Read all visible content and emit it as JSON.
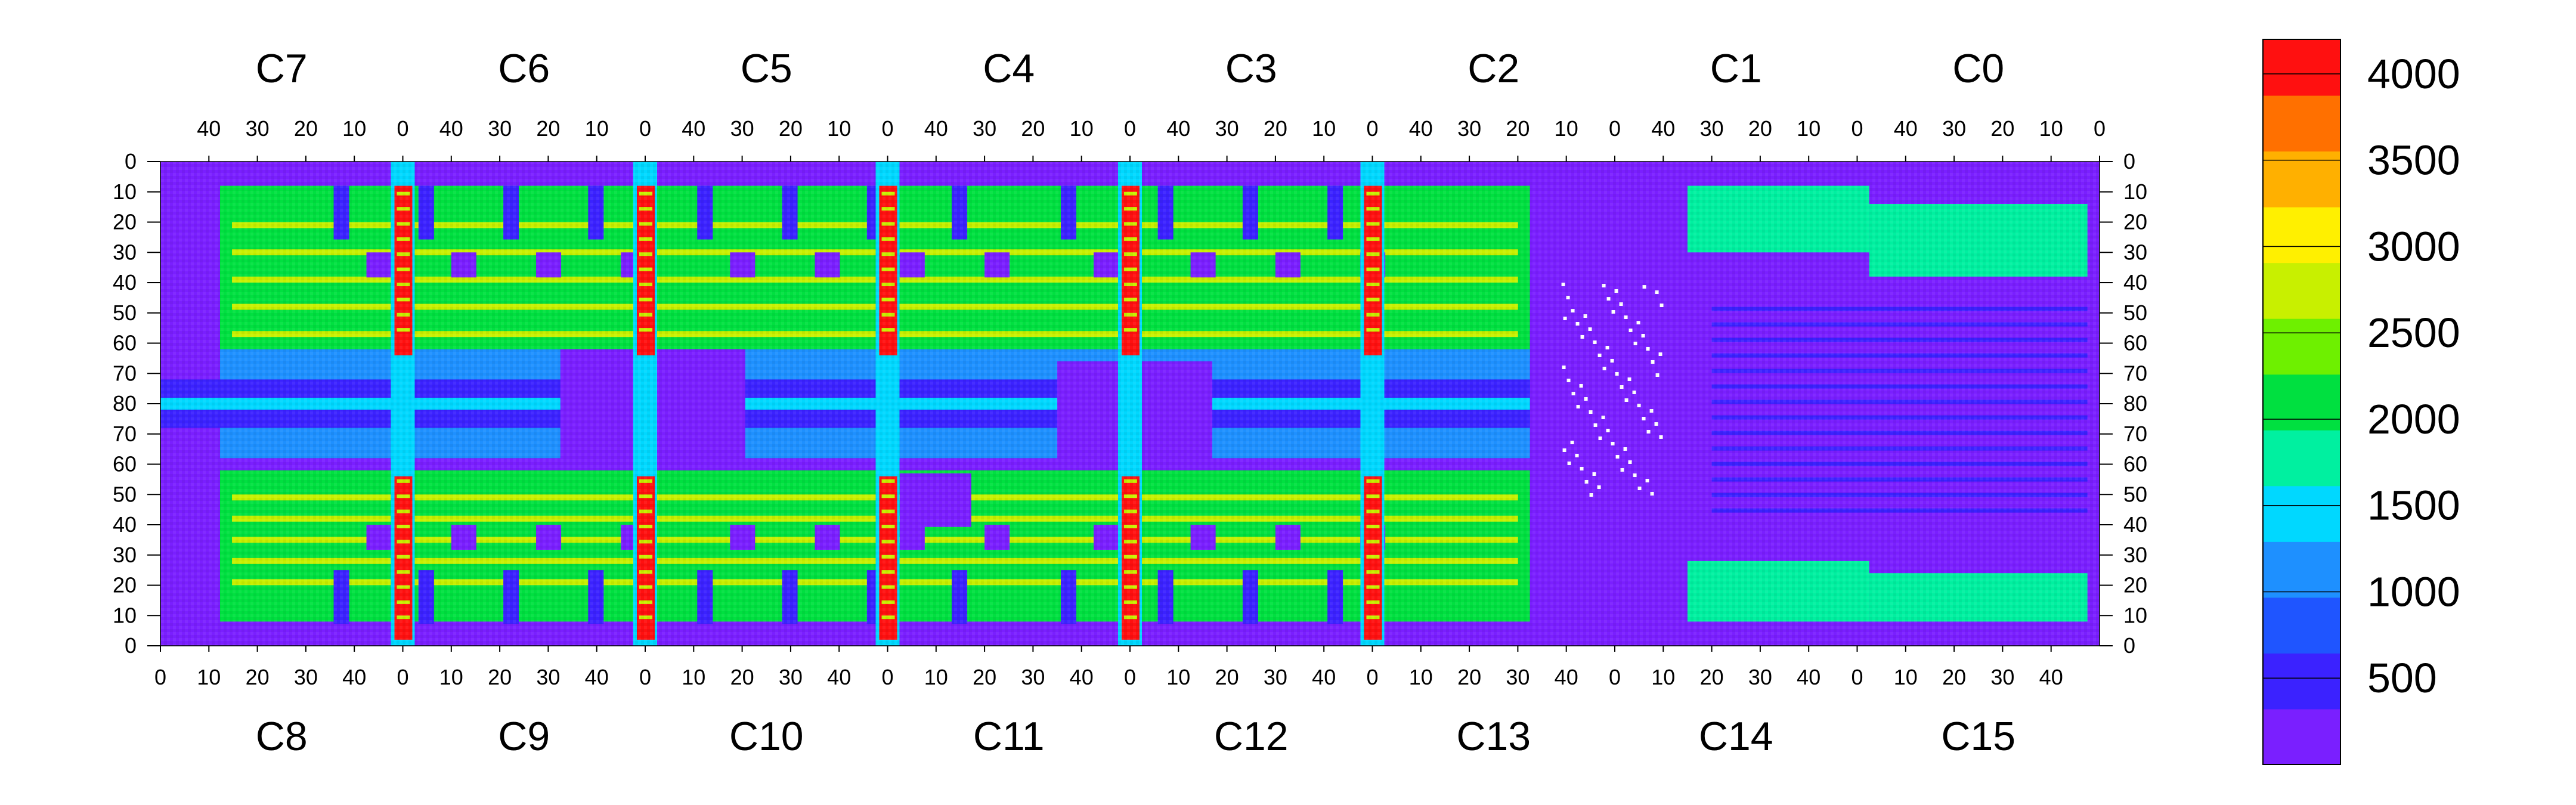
{
  "chart_data": {
    "type": "heatmap",
    "title": "",
    "xlabel": "",
    "ylabel": "",
    "grid": false,
    "colorbar": {
      "min": 0,
      "max": 4200,
      "ticks": [
        500,
        1000,
        1500,
        2000,
        2500,
        3000,
        3500,
        4000
      ],
      "tick_labels": [
        "500",
        "1000",
        "1500",
        "2000",
        "2500",
        "3000",
        "3500",
        "4000"
      ],
      "color_stops": [
        "#7a1fff",
        "#3b22ff",
        "#1f55ff",
        "#1e90ff",
        "#00d8ff",
        "#00f0a0",
        "#00e040",
        "#6ef000",
        "#c8f000",
        "#fff000",
        "#ffb000",
        "#ff7000",
        "#ff1010"
      ]
    },
    "y_ticks_top_half": [
      "0",
      "10",
      "20",
      "30",
      "40",
      "50",
      "60",
      "70",
      "80"
    ],
    "y_ticks_bottom_half": [
      "70",
      "60",
      "50",
      "40",
      "30",
      "20",
      "10",
      "0"
    ],
    "top_axis": {
      "modules": [
        "C7",
        "C6",
        "C5",
        "C4",
        "C3",
        "C2",
        "C1",
        "C0"
      ],
      "tick_labels": [
        "40",
        "30",
        "20",
        "10",
        "0"
      ]
    },
    "bottom_axis": {
      "modules": [
        "C8",
        "C9",
        "C10",
        "C11",
        "C12",
        "C13",
        "C14",
        "C15"
      ],
      "tick_labels": [
        "0",
        "10",
        "20",
        "30",
        "40"
      ]
    },
    "y_range": [
      0,
      80
    ],
    "x_range_per_module": [
      0,
      50
    ],
    "description_levels": {
      "background": 300,
      "active_rows_typical": 2200,
      "bright_columns": 3900,
      "center_band": 600
    }
  }
}
